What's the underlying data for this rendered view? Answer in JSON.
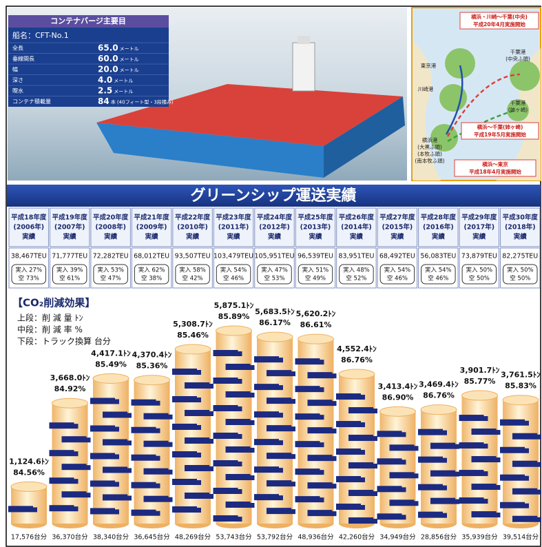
{
  "specs": {
    "title": "コンテナバージ主要目",
    "name": "船名：CFT-No.1",
    "rows": [
      {
        "label": "全長",
        "value": "65.0",
        "unit": "メートル"
      },
      {
        "label": "垂線間長",
        "value": "60.0",
        "unit": "メートル"
      },
      {
        "label": "幅",
        "value": "20.0",
        "unit": "メートル"
      },
      {
        "label": "深さ",
        "value": "4.0",
        "unit": "メートル"
      },
      {
        "label": "喫水",
        "value": "2.5",
        "unit": "メートル"
      },
      {
        "label": "コンテナ積載量",
        "value": "84",
        "unit": "本 (40フィート型・3段積み)"
      }
    ]
  },
  "map": {
    "routes": [
      [
        "横浜・川崎〜千葉(中央)",
        "平成20年4月実施開始"
      ],
      [
        "横浜〜千葉(姉ヶ崎)",
        "平成19年5月実施開始"
      ],
      [
        "横浜〜東京",
        "平成18年4月実施開始"
      ]
    ],
    "ports": [
      [
        "千葉港",
        "(中央ふ頭)"
      ],
      [
        "東京港"
      ],
      [
        "川崎港"
      ],
      [
        "千葉港",
        "(姉ヶ崎)"
      ],
      [
        "横浜港",
        "(大黒ふ頭)",
        "(本牧ふ頭)",
        "(南本牧ふ頭)"
      ]
    ]
  },
  "table": {
    "title": "グリーンシップ運送実績",
    "headers": [
      [
        "平成18年度",
        "(2006年)",
        "実績"
      ],
      [
        "平成19年度",
        "(2007年)",
        "実績"
      ],
      [
        "平成20年度",
        "(2008年)",
        "実績"
      ],
      [
        "平成21年度",
        "(2009年)",
        "実績"
      ],
      [
        "平成22年度",
        "(2010年)",
        "実績"
      ],
      [
        "平成23年度",
        "(2011年)",
        "実績"
      ],
      [
        "平成24年度",
        "(2012年)",
        "実績"
      ],
      [
        "平成25年度",
        "(2013年)",
        "実績"
      ],
      [
        "平成26年度",
        "(2014年)",
        "実績"
      ],
      [
        "平成27年度",
        "(2015年)",
        "実績"
      ],
      [
        "平成28年度",
        "(2016年)",
        "実績"
      ],
      [
        "平成29年度",
        "(2017年)",
        "実績"
      ],
      [
        "平成30年度",
        "(2018年)",
        "実績"
      ]
    ],
    "teu": [
      "38,467TEU",
      "71,777TEU",
      "72,282TEU",
      "68,012TEU",
      "93,507TEU",
      "103,479TEU",
      "105,951TEU",
      "96,539TEU",
      "83,951TEU",
      "68,492TEU",
      "56,083TEU",
      "73,879TEU",
      "82,275TEU"
    ],
    "loaded": [
      "実入 27%",
      "実入 39%",
      "実入 53%",
      "実入 62%",
      "実入 58%",
      "実入 54%",
      "実入 47%",
      "実入 51%",
      "実入 48%",
      "実入 54%",
      "実入 54%",
      "実入 50%",
      "実入 50%"
    ],
    "empty": [
      "空 73%",
      "空 61%",
      "空 47%",
      "空 38%",
      "空 42%",
      "空 46%",
      "空 53%",
      "空 49%",
      "空 52%",
      "空 46%",
      "空 46%",
      "空 50%",
      "空 50%"
    ]
  },
  "chart_data": {
    "type": "bar",
    "title": "【CO₂削減効果】",
    "legend": [
      "上段：削 減 量 ﾄﾝ",
      "中段：削 減 率 %",
      "下段：トラック換算 台分"
    ],
    "values": [
      1124.6,
      3668.0,
      4417.1,
      4370.4,
      5308.7,
      5875.1,
      5683.5,
      5620.2,
      4552.4,
      3413.4,
      3469.4,
      3901.7,
      3761.5
    ],
    "value_labels": [
      "1,124.6ﾄﾝ",
      "3,668.0ﾄﾝ",
      "4,417.1ﾄﾝ",
      "4,370.4ﾄﾝ",
      "5,308.7ﾄﾝ",
      "5,875.1ﾄﾝ",
      "5,683.5ﾄﾝ",
      "5,620.2ﾄﾝ",
      "4,552.4ﾄﾝ",
      "3,413.4ﾄﾝ",
      "3,469.4ﾄﾝ",
      "3,901.7ﾄﾝ",
      "3,761.5ﾄﾝ"
    ],
    "rates": [
      84.56,
      84.92,
      85.49,
      85.36,
      85.46,
      85.89,
      86.17,
      86.61,
      86.76,
      86.9,
      86.76,
      85.77,
      85.83
    ],
    "rate_labels": [
      "84.56%",
      "84.92%",
      "85.49%",
      "85.36%",
      "85.46%",
      "85.89%",
      "86.17%",
      "86.61%",
      "86.76%",
      "86.90%",
      "86.76%",
      "85.77%",
      "85.83%"
    ],
    "trucks": [
      17576,
      36370,
      38340,
      36645,
      48269,
      53743,
      53792,
      48936,
      42260,
      34949,
      28856,
      35939,
      39514
    ],
    "truck_labels": [
      "17,576台分",
      "36,370台分",
      "38,340台分",
      "36,645台分",
      "48,269台分",
      "53,743台分",
      "53,792台分",
      "48,936台分",
      "42,260台分",
      "34,949台分",
      "28,856台分",
      "35,939台分",
      "39,514台分"
    ],
    "color": "#f3c98a"
  }
}
